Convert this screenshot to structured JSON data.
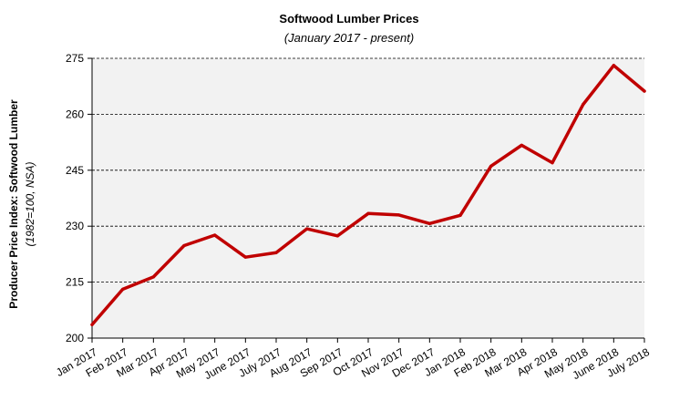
{
  "chart_data": {
    "type": "line",
    "title": "Softwood Lumber Prices",
    "subtitle": "(January 2017 - present)",
    "ylabel": "Producer Price Index: Softwood Lumber",
    "ylabel_sub": "(1982=100, NSA)",
    "xlabel": "",
    "ylim": [
      200,
      275
    ],
    "yticks": [
      "200",
      "215",
      "230",
      "245",
      "260",
      "275"
    ],
    "categories": [
      "Jan 2017",
      "Feb 2017",
      "Mar 2017",
      "Apr 2017",
      "May 2017",
      "June 2017",
      "July 2017",
      "Aug 2017",
      "Sep 2017",
      "Oct 2017",
      "Nov 2017",
      "Dec 2017",
      "Jan 2018",
      "Feb 2018",
      "Mar 2018",
      "Apr 2018",
      "May 2018",
      "June 2018",
      "July 2018"
    ],
    "series": [
      {
        "values": [
          203.6,
          213.1,
          216.4,
          224.8,
          227.6,
          221.7,
          222.9,
          229.3,
          227.4,
          233.4,
          233.0,
          230.7,
          232.9,
          246.1,
          251.7,
          247.0,
          262.6,
          273.1,
          266.2
        ],
        "color": "#c00000"
      }
    ],
    "grid": true,
    "grid_style": "dashed",
    "legend": "none",
    "plot_background": "#f2f2f2"
  }
}
